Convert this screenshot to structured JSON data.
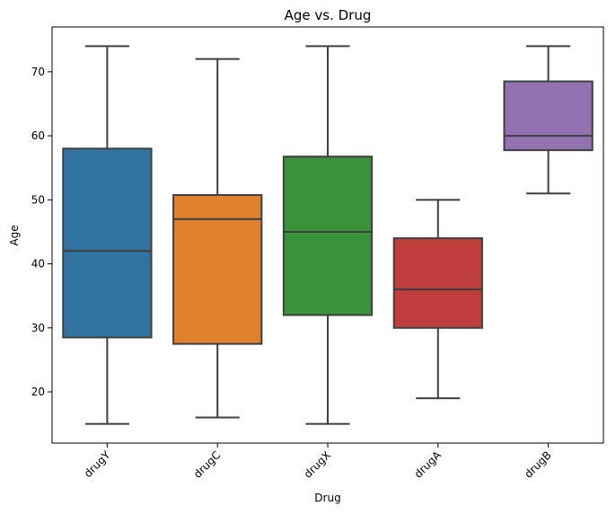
{
  "chart_data": {
    "type": "box",
    "title": "Age vs. Drug",
    "xlabel": "Drug",
    "ylabel": "Age",
    "ylim": [
      12,
      77
    ],
    "yticks": [
      20,
      30,
      40,
      50,
      60,
      70
    ],
    "grid": false,
    "categories": [
      "drugY",
      "drugC",
      "drugX",
      "drugA",
      "drugB"
    ],
    "boxes": [
      {
        "name": "drugY",
        "min": 15,
        "q1": 28.5,
        "median": 42,
        "q3": 58,
        "max": 74,
        "color": "#3274a1"
      },
      {
        "name": "drugC",
        "min": 16,
        "q1": 27.5,
        "median": 47,
        "q3": 50.75,
        "max": 72,
        "color": "#e1812c"
      },
      {
        "name": "drugX",
        "min": 15,
        "q1": 32,
        "median": 45,
        "q3": 56.75,
        "max": 74,
        "color": "#3a923a"
      },
      {
        "name": "drugA",
        "min": 19,
        "q1": 30,
        "median": 36,
        "q3": 44,
        "max": 50,
        "color": "#c03d3e"
      },
      {
        "name": "drugB",
        "min": 51,
        "q1": 57.75,
        "median": 60,
        "q3": 68.5,
        "max": 74,
        "color": "#9372b2"
      }
    ]
  }
}
